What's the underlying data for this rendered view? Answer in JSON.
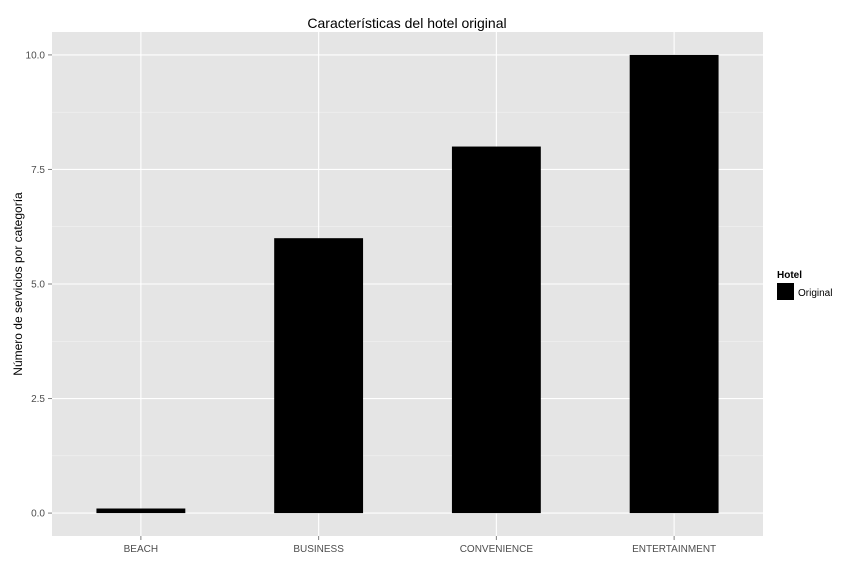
{
  "chart_data": {
    "type": "bar",
    "title": "Características del hotel original",
    "xlabel": "",
    "ylabel": "Número de servicios por categoría",
    "categories": [
      "BEACH",
      "BUSINESS",
      "CONVENIENCE",
      "ENTERTAINMENT"
    ],
    "series": [
      {
        "name": "Original",
        "values": [
          0.1,
          6,
          8,
          10
        ]
      }
    ],
    "ylim": [
      -0.5,
      10.5
    ],
    "yticks": [
      0.0,
      2.5,
      5.0,
      7.5,
      10.0
    ],
    "ytick_labels": [
      "0.0",
      "2.5",
      "5.0",
      "7.5",
      "10.0"
    ],
    "grid": true,
    "legend": {
      "title": "Hotel",
      "position": "right"
    },
    "colors": {
      "bar": "#000000",
      "panel": "#e5e5e5",
      "grid_major": "#ffffff",
      "grid_minor": "#f2f2f2"
    }
  }
}
